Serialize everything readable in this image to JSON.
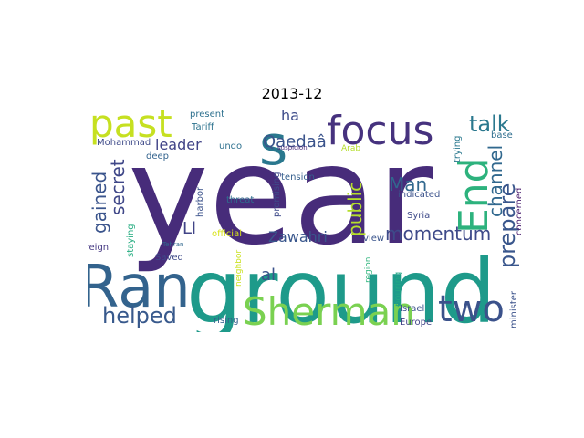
{
  "figure": {
    "title": "2013-12"
  },
  "cloud": {
    "words": [
      {
        "text": "year",
        "color": "#472c7a"
      },
      {
        "text": "ground",
        "color": "#1e9a8a"
      },
      {
        "text": "Ran",
        "color": "#33638d"
      },
      {
        "text": "focus",
        "color": "#46327e"
      },
      {
        "text": "past",
        "color": "#c6e021"
      },
      {
        "text": "s",
        "color": "#2a788e"
      },
      {
        "text": "End",
        "color": "#2db27d"
      },
      {
        "text": "Sherman",
        "color": "#7ad151"
      },
      {
        "text": "two",
        "color": "#3b528b"
      },
      {
        "text": "talk",
        "color": "#2a788e"
      },
      {
        "text": "helped",
        "color": "#38598c"
      },
      {
        "text": "momentum",
        "color": "#3e4a89"
      },
      {
        "text": "prepare",
        "color": "#39568c"
      },
      {
        "text": "channel",
        "color": "#31688e"
      },
      {
        "text": "public",
        "color": "#b5de2b"
      },
      {
        "text": "gained",
        "color": "#3a548c"
      },
      {
        "text": "secret",
        "color": "#3f4788"
      },
      {
        "text": "Qaedaâ",
        "color": "#3a538b"
      },
      {
        "text": "Man",
        "color": "#31688e"
      },
      {
        "text": "Zawahri",
        "color": "#39568c"
      },
      {
        "text": "leader",
        "color": "#404387"
      },
      {
        "text": "ha",
        "color": "#3e4c8a"
      },
      {
        "text": "Ll",
        "color": "#414487"
      },
      {
        "text": "al",
        "color": "#3b528b"
      },
      {
        "text": "present",
        "color": "#2d708e"
      },
      {
        "text": "Tariff",
        "color": "#2c728e"
      },
      {
        "text": "Mohammad",
        "color": "#3e4a89"
      },
      {
        "text": "undo",
        "color": "#2d708e"
      },
      {
        "text": "deep",
        "color": "#33638d"
      },
      {
        "text": "suspicion",
        "color": "#482878"
      },
      {
        "text": "Arab",
        "color": "#b5de2b"
      },
      {
        "text": "trying",
        "color": "#2a788e"
      },
      {
        "text": "base",
        "color": "#2e6e8e"
      },
      {
        "text": "concerned",
        "color": "#481b6d"
      },
      {
        "text": "tension",
        "color": "#355f8d"
      },
      {
        "text": "indicated",
        "color": "#3b528b"
      },
      {
        "text": "threat",
        "color": "#2e6d8e"
      },
      {
        "text": "promising",
        "color": "#3e4a89"
      },
      {
        "text": "harbor",
        "color": "#3b528b"
      },
      {
        "text": "staying",
        "color": "#26ad81"
      },
      {
        "text": "Syria",
        "color": "#3e4a89"
      },
      {
        "text": "official",
        "color": "#d8e219"
      },
      {
        "text": "view",
        "color": "#3a548c"
      },
      {
        "text": "foreign",
        "color": "#453882"
      },
      {
        "text": "Tehran",
        "color": "#31688e"
      },
      {
        "text": "Saved",
        "color": "#3e4a89"
      },
      {
        "text": "neighbor",
        "color": "#cae11f"
      },
      {
        "text": "region",
        "color": "#2fb47c"
      },
      {
        "text": "pouring",
        "color": "#22a785"
      },
      {
        "text": "Israel",
        "color": "#3b528b"
      },
      {
        "text": "minister",
        "color": "#3b528b"
      },
      {
        "text": "rising",
        "color": "#355f8d"
      },
      {
        "text": "Europe",
        "color": "#414487"
      }
    ]
  }
}
